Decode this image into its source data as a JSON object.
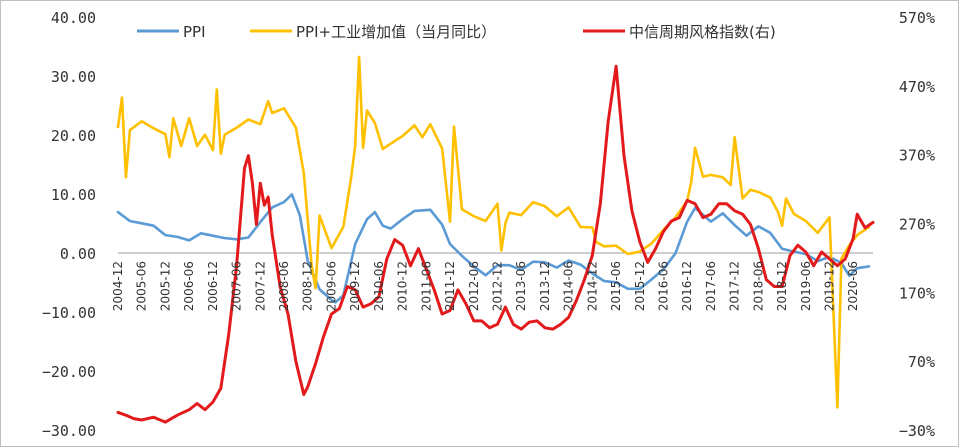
{
  "chart_data": {
    "type": "line",
    "title": "",
    "legend": {
      "placement": "top",
      "entries": [
        {
          "name": "PPI",
          "color": "#5b9bd5"
        },
        {
          "name": "PPI+工业增加值（当月同比）",
          "color": "#ffc000"
        },
        {
          "name": "中信周期风格指数(右)",
          "color": "#e31a1c"
        }
      ]
    },
    "y_left": {
      "range": [
        -30,
        40
      ],
      "ticks": [
        "40.00",
        "30.00",
        "20.00",
        "10.00",
        "0.00",
        "−10.00",
        "−20.00",
        "−30.00"
      ]
    },
    "y_right": {
      "range": [
        -30,
        570
      ],
      "ticks": [
        "570%",
        "470%",
        "370%",
        "270%",
        "170%",
        "70%",
        "−30%"
      ]
    },
    "x_ticks": [
      "2004-12",
      "2005-06",
      "2005-12",
      "2006-06",
      "2006-12",
      "2007-06",
      "2007-12",
      "2008-06",
      "2008-12",
      "2009-06",
      "2009-12",
      "2010-06",
      "2010-12",
      "2011-06",
      "2011-12",
      "2012-06",
      "2012-12",
      "2013-06",
      "2013-12",
      "2014-06",
      "2014-12",
      "2015-06",
      "2015-12",
      "2016-06",
      "2016-12",
      "2017-06",
      "2017-12",
      "2018-06",
      "2018-12",
      "2019-06",
      "2019-12",
      "2020-06"
    ],
    "series": [
      {
        "name": "PPI",
        "axis": "left",
        "color": "#5b9bd5",
        "points": [
          [
            "2004-12",
            7.1
          ],
          [
            "2005-03",
            5.6
          ],
          [
            "2005-06",
            5.2
          ],
          [
            "2005-09",
            4.8
          ],
          [
            "2005-12",
            3.2
          ],
          [
            "2006-03",
            2.9
          ],
          [
            "2006-06",
            2.3
          ],
          [
            "2006-09",
            3.5
          ],
          [
            "2006-12",
            3.1
          ],
          [
            "2007-03",
            2.7
          ],
          [
            "2007-06",
            2.5
          ],
          [
            "2007-09",
            2.8
          ],
          [
            "2007-12",
            5.4
          ],
          [
            "2008-03",
            7.9
          ],
          [
            "2008-06",
            8.8
          ],
          [
            "2008-08",
            10.1
          ],
          [
            "2008-10",
            6.6
          ],
          [
            "2008-12",
            -1.1
          ],
          [
            "2009-03",
            -6.0
          ],
          [
            "2009-06",
            -7.8
          ],
          [
            "2009-07",
            -8.2
          ],
          [
            "2009-09",
            -7.0
          ],
          [
            "2009-12",
            1.7
          ],
          [
            "2010-03",
            5.9
          ],
          [
            "2010-05",
            7.1
          ],
          [
            "2010-07",
            4.8
          ],
          [
            "2010-09",
            4.3
          ],
          [
            "2010-12",
            5.9
          ],
          [
            "2011-03",
            7.3
          ],
          [
            "2011-07",
            7.5
          ],
          [
            "2011-10",
            5.0
          ],
          [
            "2011-12",
            1.7
          ],
          [
            "2012-03",
            -0.3
          ],
          [
            "2012-06",
            -2.1
          ],
          [
            "2012-09",
            -3.6
          ],
          [
            "2012-12",
            -1.9
          ],
          [
            "2013-03",
            -1.9
          ],
          [
            "2013-06",
            -2.7
          ],
          [
            "2013-09",
            -1.3
          ],
          [
            "2013-12",
            -1.4
          ],
          [
            "2014-03",
            -2.3
          ],
          [
            "2014-06",
            -1.1
          ],
          [
            "2014-09",
            -1.8
          ],
          [
            "2014-12",
            -3.3
          ],
          [
            "2015-03",
            -4.6
          ],
          [
            "2015-06",
            -4.8
          ],
          [
            "2015-09",
            -5.9
          ],
          [
            "2015-12",
            -5.9
          ],
          [
            "2016-03",
            -4.3
          ],
          [
            "2016-06",
            -2.6
          ],
          [
            "2016-09",
            0.1
          ],
          [
            "2016-12",
            5.5
          ],
          [
            "2017-02",
            7.8
          ],
          [
            "2017-06",
            5.5
          ],
          [
            "2017-09",
            6.9
          ],
          [
            "2017-12",
            4.9
          ],
          [
            "2018-03",
            3.1
          ],
          [
            "2018-06",
            4.7
          ],
          [
            "2018-09",
            3.6
          ],
          [
            "2018-12",
            0.9
          ],
          [
            "2019-03",
            0.4
          ],
          [
            "2019-06",
            0.0
          ],
          [
            "2019-09",
            -1.2
          ],
          [
            "2019-12",
            -0.5
          ],
          [
            "2020-03",
            -1.5
          ],
          [
            "2020-05",
            -3.7
          ],
          [
            "2020-07",
            -2.4
          ],
          [
            "2020-10",
            -2.1
          ]
        ]
      },
      {
        "name": "PPI+工业增加值（当月同比）",
        "axis": "left",
        "color": "#ffc000",
        "points": [
          [
            "2004-12",
            21.5
          ],
          [
            "2005-01",
            26.5
          ],
          [
            "2005-02",
            13.0
          ],
          [
            "2005-03",
            21.0
          ],
          [
            "2005-06",
            22.5
          ],
          [
            "2005-09",
            21.3
          ],
          [
            "2005-12",
            20.3
          ],
          [
            "2006-01",
            16.4
          ],
          [
            "2006-02",
            23.0
          ],
          [
            "2006-04",
            18.3
          ],
          [
            "2006-06",
            23.0
          ],
          [
            "2006-08",
            18.3
          ],
          [
            "2006-10",
            20.2
          ],
          [
            "2006-12",
            17.6
          ],
          [
            "2007-01",
            27.9
          ],
          [
            "2007-02",
            17.0
          ],
          [
            "2007-03",
            20.2
          ],
          [
            "2007-06",
            21.4
          ],
          [
            "2007-09",
            22.8
          ],
          [
            "2007-12",
            22.0
          ],
          [
            "2008-02",
            25.9
          ],
          [
            "2008-03",
            23.9
          ],
          [
            "2008-06",
            24.7
          ],
          [
            "2008-09",
            21.4
          ],
          [
            "2008-11",
            13.7
          ],
          [
            "2009-01",
            -2.1
          ],
          [
            "2009-02",
            -5.8
          ],
          [
            "2009-03",
            6.5
          ],
          [
            "2009-06",
            1.0
          ],
          [
            "2009-09",
            4.6
          ],
          [
            "2009-11",
            13.0
          ],
          [
            "2009-12",
            18.4
          ],
          [
            "2010-01",
            33.4
          ],
          [
            "2010-02",
            18.0
          ],
          [
            "2010-03",
            24.3
          ],
          [
            "2010-05",
            22.2
          ],
          [
            "2010-07",
            17.8
          ],
          [
            "2010-09",
            18.7
          ],
          [
            "2010-12",
            20.0
          ],
          [
            "2011-03",
            21.8
          ],
          [
            "2011-05",
            19.8
          ],
          [
            "2011-07",
            22.0
          ],
          [
            "2011-10",
            17.9
          ],
          [
            "2011-12",
            5.5
          ],
          [
            "2012-01",
            21.6
          ],
          [
            "2012-03",
            7.6
          ],
          [
            "2012-06",
            6.4
          ],
          [
            "2012-09",
            5.6
          ],
          [
            "2012-12",
            8.5
          ],
          [
            "2013-01",
            0.6
          ],
          [
            "2013-02",
            5.2
          ],
          [
            "2013-03",
            7.0
          ],
          [
            "2013-06",
            6.6
          ],
          [
            "2013-09",
            8.8
          ],
          [
            "2013-12",
            8.1
          ],
          [
            "2014-03",
            6.4
          ],
          [
            "2014-06",
            7.9
          ],
          [
            "2014-09",
            4.6
          ],
          [
            "2014-12",
            4.5
          ],
          [
            "2015-01",
            2.0
          ],
          [
            "2015-03",
            1.3
          ],
          [
            "2015-06",
            1.4
          ],
          [
            "2015-09",
            0.0
          ],
          [
            "2015-12",
            0.4
          ],
          [
            "2016-03",
            1.8
          ],
          [
            "2016-06",
            4.1
          ],
          [
            "2016-09",
            6.2
          ],
          [
            "2016-12",
            9.0
          ],
          [
            "2017-01",
            12.2
          ],
          [
            "2017-02",
            18.0
          ],
          [
            "2017-04",
            13.1
          ],
          [
            "2017-06",
            13.4
          ],
          [
            "2017-09",
            13.0
          ],
          [
            "2017-11",
            11.7
          ],
          [
            "2017-12",
            19.8
          ],
          [
            "2018-02",
            9.4
          ],
          [
            "2018-04",
            10.9
          ],
          [
            "2018-06",
            10.5
          ],
          [
            "2018-09",
            9.6
          ],
          [
            "2018-11",
            7.1
          ],
          [
            "2018-12",
            4.8
          ],
          [
            "2019-01",
            9.4
          ],
          [
            "2019-03",
            6.8
          ],
          [
            "2019-06",
            5.6
          ],
          [
            "2019-09",
            3.6
          ],
          [
            "2019-12",
            6.2
          ],
          [
            "2020-02",
            -26.0
          ],
          [
            "2020-03",
            -0.8
          ],
          [
            "2020-05",
            1.5
          ],
          [
            "2020-07",
            3.2
          ],
          [
            "2020-10",
            4.6
          ]
        ]
      },
      {
        "name": "中信周期风格指数(右)",
        "axis": "right",
        "color": "#e31a1c",
        "points": [
          [
            "2004-12",
            -3
          ],
          [
            "2005-02",
            -7
          ],
          [
            "2005-04",
            -12
          ],
          [
            "2005-06",
            -14
          ],
          [
            "2005-09",
            -10
          ],
          [
            "2005-12",
            -17
          ],
          [
            "2006-03",
            -7
          ],
          [
            "2006-06",
            1
          ],
          [
            "2006-08",
            10
          ],
          [
            "2006-10",
            1
          ],
          [
            "2006-12",
            12
          ],
          [
            "2007-02",
            32
          ],
          [
            "2007-04",
            110
          ],
          [
            "2007-06",
            210
          ],
          [
            "2007-08",
            352
          ],
          [
            "2007-09",
            370
          ],
          [
            "2007-10",
            330
          ],
          [
            "2007-11",
            270
          ],
          [
            "2007-12",
            330
          ],
          [
            "2008-01",
            298
          ],
          [
            "2008-02",
            310
          ],
          [
            "2008-03",
            255
          ],
          [
            "2008-05",
            180
          ],
          [
            "2008-07",
            140
          ],
          [
            "2008-09",
            71
          ],
          [
            "2008-11",
            23
          ],
          [
            "2008-12",
            34
          ],
          [
            "2009-02",
            68
          ],
          [
            "2009-04",
            107
          ],
          [
            "2009-06",
            140
          ],
          [
            "2009-08",
            148
          ],
          [
            "2009-10",
            180
          ],
          [
            "2009-12",
            175
          ],
          [
            "2010-02",
            150
          ],
          [
            "2010-04",
            155
          ],
          [
            "2010-06",
            165
          ],
          [
            "2010-08",
            220
          ],
          [
            "2010-10",
            248
          ],
          [
            "2010-12",
            240
          ],
          [
            "2011-02",
            210
          ],
          [
            "2011-04",
            235
          ],
          [
            "2011-06",
            205
          ],
          [
            "2011-08",
            175
          ],
          [
            "2011-10",
            140
          ],
          [
            "2011-12",
            145
          ],
          [
            "2012-02",
            175
          ],
          [
            "2012-04",
            155
          ],
          [
            "2012-06",
            130
          ],
          [
            "2012-08",
            130
          ],
          [
            "2012-10",
            120
          ],
          [
            "2012-12",
            125
          ],
          [
            "2013-02",
            150
          ],
          [
            "2013-04",
            125
          ],
          [
            "2013-06",
            118
          ],
          [
            "2013-08",
            128
          ],
          [
            "2013-10",
            130
          ],
          [
            "2013-12",
            120
          ],
          [
            "2014-02",
            118
          ],
          [
            "2014-04",
            125
          ],
          [
            "2014-06",
            135
          ],
          [
            "2014-08",
            160
          ],
          [
            "2014-10",
            190
          ],
          [
            "2014-12",
            225
          ],
          [
            "2015-02",
            300
          ],
          [
            "2015-04",
            420
          ],
          [
            "2015-06",
            500
          ],
          [
            "2015-08",
            370
          ],
          [
            "2015-10",
            290
          ],
          [
            "2015-12",
            245
          ],
          [
            "2016-02",
            215
          ],
          [
            "2016-04",
            235
          ],
          [
            "2016-06",
            260
          ],
          [
            "2016-08",
            275
          ],
          [
            "2016-10",
            280
          ],
          [
            "2016-12",
            305
          ],
          [
            "2017-02",
            300
          ],
          [
            "2017-04",
            280
          ],
          [
            "2017-06",
            285
          ],
          [
            "2017-08",
            300
          ],
          [
            "2017-10",
            300
          ],
          [
            "2017-12",
            290
          ],
          [
            "2018-02",
            285
          ],
          [
            "2018-04",
            270
          ],
          [
            "2018-06",
            235
          ],
          [
            "2018-08",
            190
          ],
          [
            "2018-10",
            180
          ],
          [
            "2018-12",
            180
          ],
          [
            "2019-02",
            225
          ],
          [
            "2019-04",
            240
          ],
          [
            "2019-06",
            230
          ],
          [
            "2019-08",
            210
          ],
          [
            "2019-10",
            230
          ],
          [
            "2019-12",
            220
          ],
          [
            "2020-02",
            210
          ],
          [
            "2020-04",
            220
          ],
          [
            "2020-06",
            250
          ],
          [
            "2020-07",
            285
          ],
          [
            "2020-09",
            265
          ],
          [
            "2020-11",
            273
          ]
        ]
      }
    ]
  }
}
